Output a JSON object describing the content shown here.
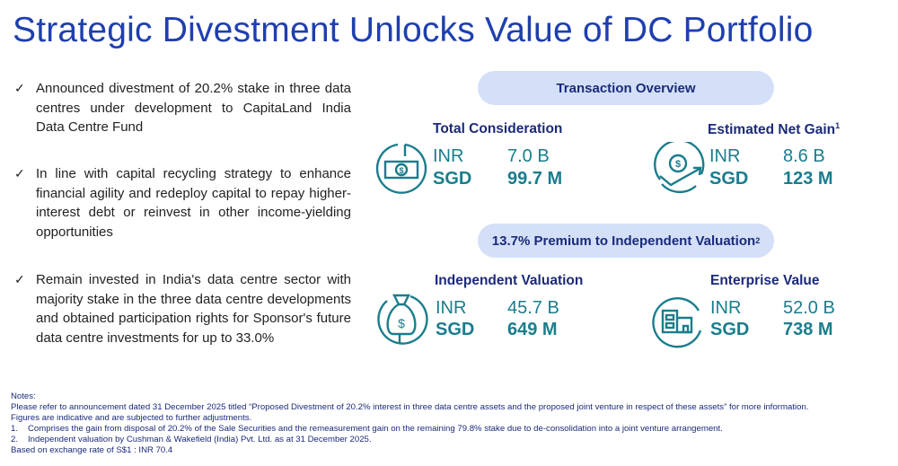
{
  "title": "Strategic Divestment Unlocks Value of DC Portfolio",
  "bullets": [
    "Announced divestment of 20.2% stake in three data centres under development to CapitaLand India Data Centre Fund",
    "In line with capital recycling strategy to enhance financial agility and redeploy capital to repay higher-interest debt or reinvest in other income-yielding opportunities",
    "Remain invested in India's data centre sector with majority stake in the three data centre developments and obtained participation rights for Sponsor's future data centre investments for up to 33.0%"
  ],
  "check_mark": "✓",
  "transaction_overview": "Transaction Overview",
  "premium": {
    "label": "13.7% Premium to Independent Valuation",
    "sup": "2"
  },
  "cards": [
    {
      "title": "Total Consideration",
      "sup": "",
      "inr_label": "INR",
      "inr": "7.0 B",
      "sgd_label": "SGD",
      "sgd": "99.7 M",
      "icon": "banknote-icon"
    },
    {
      "title": "Estimated Net Gain",
      "sup": "1",
      "inr_label": "INR",
      "inr": "8.6 B",
      "sgd_label": "SGD",
      "sgd": "123 M",
      "icon": "growth-coin-icon"
    },
    {
      "title": "Independent Valuation",
      "sup": "",
      "inr_label": "INR",
      "inr": "45.7 B",
      "sgd_label": "SGD",
      "sgd": "649 M",
      "icon": "money-bag-icon"
    },
    {
      "title": "Enterprise Value",
      "sup": "",
      "inr_label": "INR",
      "inr": "52.0 B",
      "sgd_label": "SGD",
      "sgd": "738 M",
      "icon": "building-icon"
    }
  ],
  "notes": {
    "heading": "Notes:",
    "lines": [
      "Please refer to announcement dated 31 December 2025 titled “Proposed Divestment of 20.2% interest in three data centre assets and the proposed joint venture in respect of these assets” for more information.",
      "Figures are indicative and are subjected to further adjustments."
    ],
    "footnotes": [
      {
        "num": "1.",
        "text": "Comprises the gain from disposal of 20.2% of the Sale Securities and the remeasurement gain on the remaining 79.8% stake due to de-consolidation into a joint venture arrangement."
      },
      {
        "num": "2.",
        "text": "Independent valuation by Cushman & Wakefield (India) Pvt. Ltd. as at 31 December 2025."
      }
    ],
    "exchange": "Based on exchange rate of S$1 : INR 70.4"
  },
  "colors": {
    "title": "#1f3fae",
    "heading": "#1b2a7a",
    "teal": "#1a7d8c",
    "pill": "#d3e0f8"
  }
}
